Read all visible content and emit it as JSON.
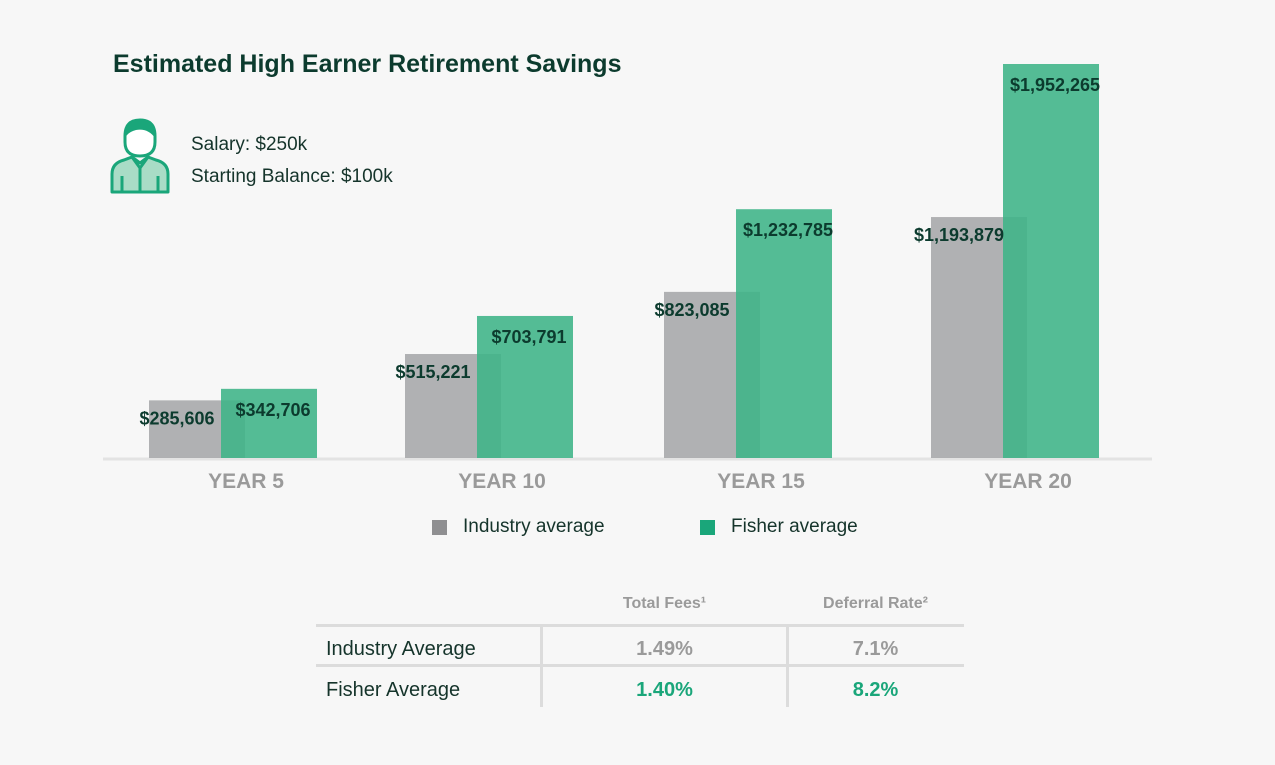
{
  "title": "Estimated High Earner Retirement Savings",
  "profile": {
    "icon": "person-icon",
    "salary": "Salary: $250k",
    "starting_balance": "Starting Balance: $100k"
  },
  "colors": {
    "industry": "#a9aaad",
    "fisher": "#3db487",
    "fisher_text": "#1aa67a",
    "industry_text": "#9a9a9a",
    "dark_text": "#0c3b2e"
  },
  "chart_data": {
    "type": "bar",
    "categories": [
      "YEAR 5",
      "YEAR 10",
      "YEAR 15",
      "YEAR 20"
    ],
    "series": [
      {
        "name": "Industry average",
        "values": [
          285606,
          515221,
          823085,
          1193879
        ],
        "labels": [
          "$285,606",
          "$515,221",
          "$823,085",
          "$1,193,879"
        ]
      },
      {
        "name": "Fisher average",
        "values": [
          342706,
          703791,
          1232785,
          1952265
        ],
        "labels": [
          "$342,706",
          "$703,791",
          "$1,232,785",
          "$1,952,265"
        ]
      }
    ],
    "ylim": [
      0,
      2000000
    ],
    "grid": false,
    "legend": "bottom-center"
  },
  "legend": {
    "industry": "Industry average",
    "fisher": "Fisher average"
  },
  "table": {
    "headers": [
      "Total Fees¹",
      "Deferral Rate²"
    ],
    "rows": [
      {
        "label": "Industry Average",
        "total_fees": "1.49%",
        "deferral_rate": "7.1%"
      },
      {
        "label": "Fisher Average",
        "total_fees": "1.40%",
        "deferral_rate": "8.2%"
      }
    ]
  }
}
